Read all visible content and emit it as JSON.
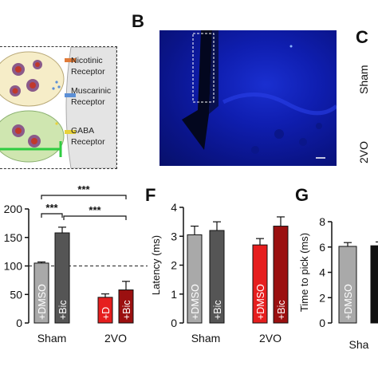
{
  "panel_labels": {
    "B": "B",
    "C": "C",
    "F": "F",
    "G": "G"
  },
  "diagram": {
    "receptor_1": "Nicotinic Receptor",
    "receptor_2": "Muscarinic Receptor",
    "receptor_3": "GABA Receptor"
  },
  "panel_c": {
    "row_1": "Sham",
    "row_2": "2VO"
  },
  "colors": {
    "sham_light": "#a9a9a9",
    "sham_dark": "#555555",
    "vo_light": "#e61e1e",
    "vo_dark": "#9b1010",
    "micro_blue": "#1024b8"
  },
  "chart_data": [
    {
      "id": "E",
      "type": "bar",
      "ylabel": "",
      "ylim": [
        0,
        200
      ],
      "yticks": [
        "0",
        "50",
        "100",
        "150",
        "200"
      ],
      "groups": [
        "Sham",
        "2VO"
      ],
      "bars": [
        {
          "group": "Sham",
          "label": "+DMSO",
          "value": 105,
          "err": 2,
          "color": "#a9a9a9"
        },
        {
          "group": "Sham",
          "label": "+Bic",
          "value": 158,
          "err": 10,
          "color": "#555555"
        },
        {
          "group": "2VO",
          "label": "+D",
          "value": 45,
          "err": 6,
          "color": "#e61e1e"
        },
        {
          "group": "2VO",
          "label": "+Bic",
          "value": 58,
          "err": 15,
          "color": "#9b1010"
        }
      ],
      "reference_line": 100,
      "significance": [
        "***",
        "***",
        "***"
      ]
    },
    {
      "id": "F",
      "type": "bar",
      "ylabel": "Latency (ms)",
      "ylim": [
        0,
        4
      ],
      "yticks": [
        "0",
        "1",
        "2",
        "3",
        "4"
      ],
      "groups": [
        "Sham",
        "2VO"
      ],
      "bars": [
        {
          "group": "Sham",
          "label": "+DMSO",
          "value": 3.05,
          "err": 0.3,
          "color": "#a9a9a9"
        },
        {
          "group": "Sham",
          "label": "+Bic",
          "value": 3.2,
          "err": 0.3,
          "color": "#555555"
        },
        {
          "group": "2VO",
          "label": "+DMSO",
          "value": 2.7,
          "err": 0.22,
          "color": "#e61e1e"
        },
        {
          "group": "2VO",
          "label": "+Bic",
          "value": 3.35,
          "err": 0.32,
          "color": "#9b1010"
        }
      ]
    },
    {
      "id": "G",
      "type": "bar",
      "ylabel": "Time to pick (ms)",
      "ylim": [
        0,
        8
      ],
      "yticks": [
        "0",
        "2",
        "4",
        "6",
        "8"
      ],
      "groups": [
        "Sha"
      ],
      "bars": [
        {
          "group": "Sha",
          "label": "+DMSO",
          "value": 6.05,
          "err": 0.3,
          "color": "#a9a9a9"
        },
        {
          "group": "Sha",
          "label": "",
          "value": 6.1,
          "err": 0.3,
          "color": "#111111"
        }
      ]
    }
  ]
}
